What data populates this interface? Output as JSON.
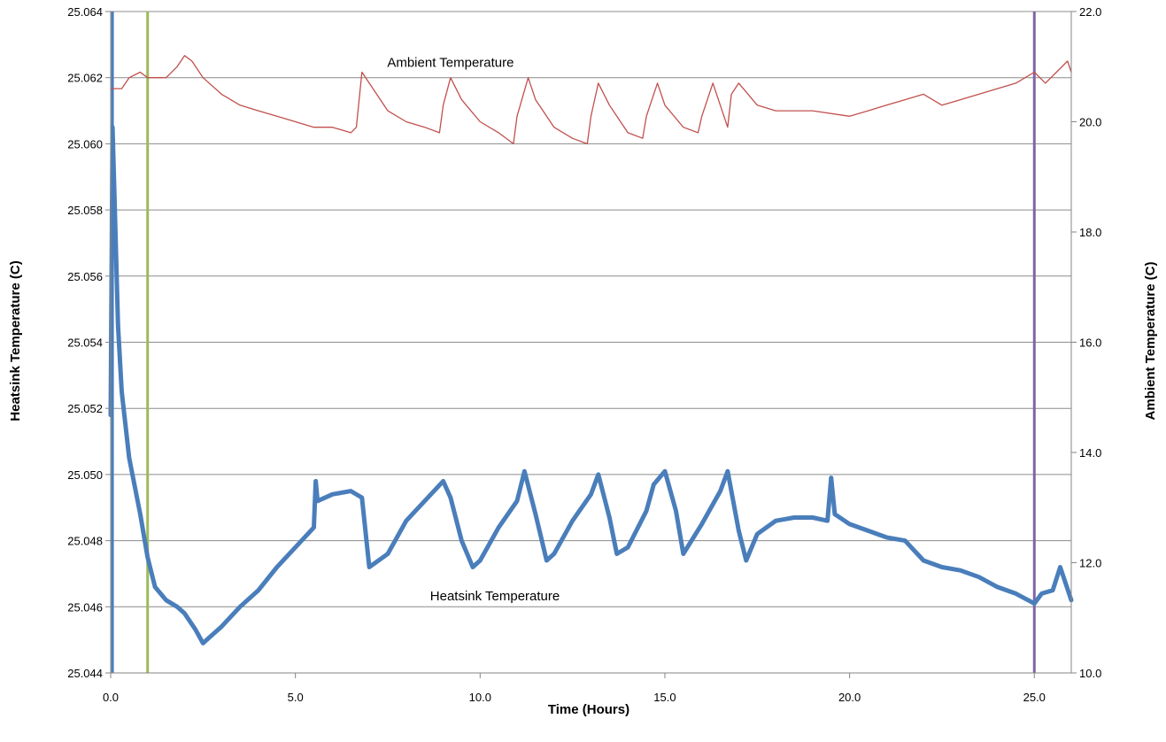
{
  "chart_data": {
    "type": "line",
    "title": "",
    "xlabel": "Time (Hours)",
    "ylabel_left": "Heatsink Temperature (C)",
    "ylabel_right": "Ambient Temperature (C)",
    "xlim": [
      0,
      26
    ],
    "ylim_left": [
      25.044,
      25.064
    ],
    "ylim_right": [
      10.0,
      22.0
    ],
    "x_ticks": [
      "0.0",
      "5.0",
      "10.0",
      "15.0",
      "20.0",
      "25.0"
    ],
    "x_tick_values": [
      0,
      5,
      10,
      15,
      20,
      25
    ],
    "y_left_ticks": [
      "25.044",
      "25.046",
      "25.048",
      "25.050",
      "25.052",
      "25.054",
      "25.056",
      "25.058",
      "25.060",
      "25.062",
      "25.064"
    ],
    "y_left_tick_values": [
      25.044,
      25.046,
      25.048,
      25.05,
      25.052,
      25.054,
      25.056,
      25.058,
      25.06,
      25.062,
      25.064
    ],
    "y_right_ticks": [
      "10.0",
      "12.0",
      "14.0",
      "16.0",
      "18.0",
      "20.0",
      "22.0"
    ],
    "y_right_tick_values": [
      10,
      12,
      14,
      16,
      18,
      20,
      22
    ],
    "grid": true,
    "annotations": [
      {
        "text": "Ambient Temperature",
        "x": 9.2,
        "axis": "right",
        "y": 21.0
      },
      {
        "text": "Heatsink Temperature",
        "x": 10.4,
        "axis": "left",
        "y": 25.0462
      }
    ],
    "vertical_markers": [
      {
        "x": 0.05,
        "color": "#4a7ebb"
      },
      {
        "x": 1.0,
        "color": "#9bbb59"
      },
      {
        "x": 25.0,
        "color": "#8064a2"
      }
    ],
    "series": [
      {
        "axis": "right",
        "color": "#c0504d",
        "x": [
          0.0,
          0.3,
          0.5,
          0.8,
          1.0,
          1.2,
          1.5,
          1.8,
          2.0,
          2.2,
          2.5,
          3.0,
          3.5,
          4.0,
          4.5,
          5.0,
          5.5,
          6.0,
          6.5,
          6.65,
          6.8,
          7.0,
          7.5,
          8.0,
          8.5,
          8.9,
          9.0,
          9.2,
          9.5,
          10.0,
          10.5,
          10.9,
          11.0,
          11.3,
          11.5,
          12.0,
          12.5,
          12.9,
          13.0,
          13.2,
          13.5,
          14.0,
          14.4,
          14.5,
          14.8,
          15.0,
          15.5,
          15.9,
          16.0,
          16.3,
          16.7,
          16.8,
          17.0,
          17.5,
          18.0,
          19.0,
          20.0,
          20.5,
          21.0,
          21.5,
          22.0,
          22.5,
          23.0,
          23.5,
          24.0,
          24.5,
          25.0,
          25.3,
          25.6,
          25.9,
          26.0
        ],
        "y": [
          20.6,
          20.6,
          20.8,
          20.9,
          20.8,
          20.8,
          20.8,
          21.0,
          21.2,
          21.1,
          20.8,
          20.5,
          20.3,
          20.2,
          20.1,
          20.0,
          19.9,
          19.9,
          19.8,
          19.9,
          20.9,
          20.7,
          20.2,
          20.0,
          19.9,
          19.8,
          20.3,
          20.8,
          20.4,
          20.0,
          19.8,
          19.6,
          20.1,
          20.8,
          20.4,
          19.9,
          19.7,
          19.6,
          20.1,
          20.7,
          20.3,
          19.8,
          19.7,
          20.1,
          20.7,
          20.3,
          19.9,
          19.8,
          20.1,
          20.7,
          19.9,
          20.5,
          20.7,
          20.3,
          20.2,
          20.2,
          20.1,
          20.2,
          20.3,
          20.4,
          20.5,
          20.3,
          20.4,
          20.5,
          20.6,
          20.7,
          20.9,
          20.7,
          20.9,
          21.1,
          20.9
        ]
      },
      {
        "axis": "left",
        "color": "#4a7ebb",
        "x": [
          0.0,
          0.05,
          0.1,
          0.2,
          0.3,
          0.5,
          0.8,
          1.0,
          1.2,
          1.5,
          1.8,
          2.0,
          2.3,
          2.5,
          2.8,
          3.0,
          3.5,
          4.0,
          4.5,
          5.0,
          5.5,
          5.55,
          5.6,
          6.0,
          6.5,
          6.8,
          7.0,
          7.5,
          8.0,
          8.5,
          9.0,
          9.2,
          9.5,
          9.8,
          10.0,
          10.5,
          11.0,
          11.2,
          11.5,
          11.8,
          12.0,
          12.5,
          13.0,
          13.2,
          13.5,
          13.7,
          14.0,
          14.5,
          14.7,
          15.0,
          15.3,
          15.5,
          16.0,
          16.5,
          16.7,
          17.0,
          17.2,
          17.5,
          18.0,
          18.5,
          19.0,
          19.4,
          19.5,
          19.6,
          20.0,
          20.5,
          21.0,
          21.5,
          22.0,
          22.5,
          23.0,
          23.5,
          24.0,
          24.5,
          25.0,
          25.2,
          25.5,
          25.7,
          26.0
        ],
        "y": [
          25.0518,
          25.0605,
          25.0585,
          25.0545,
          25.0525,
          25.0505,
          25.0488,
          25.0475,
          25.0466,
          25.0462,
          25.046,
          25.0458,
          25.0453,
          25.0449,
          25.0452,
          25.0454,
          25.046,
          25.0465,
          25.0472,
          25.0478,
          25.0484,
          25.0498,
          25.0492,
          25.0494,
          25.0495,
          25.0493,
          25.0472,
          25.0476,
          25.0486,
          25.0492,
          25.0498,
          25.0493,
          25.048,
          25.0472,
          25.0474,
          25.0484,
          25.0492,
          25.0501,
          25.0488,
          25.0474,
          25.0476,
          25.0486,
          25.0494,
          25.05,
          25.0487,
          25.0476,
          25.0478,
          25.0489,
          25.0497,
          25.0501,
          25.0489,
          25.0476,
          25.0485,
          25.0495,
          25.0501,
          25.0483,
          25.0474,
          25.0482,
          25.0486,
          25.0487,
          25.0487,
          25.0486,
          25.0499,
          25.0488,
          25.0485,
          25.0483,
          25.0481,
          25.048,
          25.0474,
          25.0472,
          25.0471,
          25.0469,
          25.0466,
          25.0464,
          25.0461,
          25.0464,
          25.0465,
          25.0472,
          25.0462
        ]
      }
    ]
  }
}
